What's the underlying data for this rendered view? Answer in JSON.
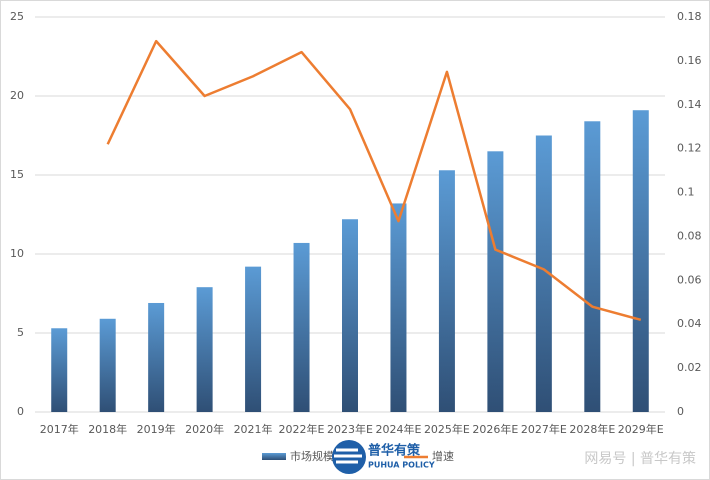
{
  "chart_data": {
    "type": "bar-line",
    "categories": [
      "2017年",
      "2018年",
      "2019年",
      "2020年",
      "2021年",
      "2022年E",
      "2023年E",
      "2024年E",
      "2025年E",
      "2026年E",
      "2027年E",
      "2028年E",
      "2029年E"
    ],
    "series": [
      {
        "name": "市场规模",
        "type": "bar",
        "color": "#5b9bd5",
        "values": [
          5.3,
          5.9,
          6.9,
          7.9,
          9.2,
          10.7,
          12.2,
          13.2,
          15.3,
          16.5,
          17.5,
          18.4,
          19.1
        ]
      },
      {
        "name": "增速",
        "type": "line",
        "axis": "y2",
        "color": "#ed7d31",
        "values": [
          null,
          0.122,
          0.169,
          0.144,
          0.153,
          0.164,
          0.138,
          0.087,
          0.155,
          0.074,
          0.065,
          0.048,
          0.042
        ]
      }
    ],
    "ylim": [
      0,
      25
    ],
    "yticks": [
      0,
      5,
      10,
      15,
      20,
      25
    ],
    "y2lim": [
      0,
      0.18
    ],
    "y2ticks": [
      0,
      0.02,
      0.04,
      0.06,
      0.08,
      0.1,
      0.12,
      0.14,
      0.16,
      0.18
    ],
    "grid": true,
    "legend": "bottom",
    "watermark": {
      "logo_cn": "普华有策",
      "logo_en": "PUHUA POLICY",
      "source": "网易号 | 普华有策"
    }
  }
}
